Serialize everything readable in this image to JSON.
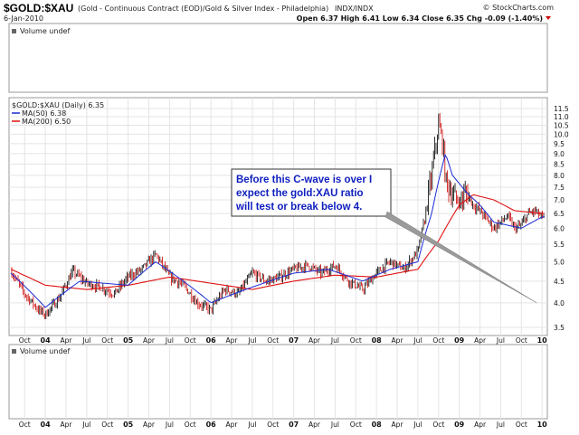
{
  "header": {
    "symbol": "$GOLD:$XAU",
    "description": "(Gold - Continuous Contract (EOD)/Gold & Silver Index - Philadelphia)",
    "exchange": "INDX/INDX",
    "watermark": "© StockCharts.com",
    "date": "6-Jan-2010",
    "quote": "Open 6.37  High 6.41  Low 6.34  Close 6.35  Chg -0.09 (-1.40%)"
  },
  "volume_panel_label": "Volume undef",
  "price_panel": {
    "legend_title": "$GOLD:$XAU (Daily) 6.35",
    "ma50_label": "MA(50) 6.38",
    "ma200_label": "MA(200) 6.50"
  },
  "lower_panel_label": "Volume undef",
  "callout": {
    "lines": [
      "Before this C-wave is over I",
      "expect the gold:XAU ratio",
      "will test or break below 4."
    ]
  },
  "colors": {
    "price_bars": "#000000",
    "down_bars": "#cc0000",
    "ma50": "#1a2bd6",
    "ma200": "#e01010",
    "grid": "#e4e4e4",
    "callout_text": "#1020c0",
    "arrow": "#888888"
  },
  "chart_data": {
    "type": "line",
    "title": "$GOLD:$XAU (Daily)",
    "ylim": [
      3.5,
      11.5
    ],
    "y_scale": "log",
    "yticks": [
      3.5,
      4.0,
      4.5,
      5.0,
      5.5,
      6.0,
      6.5,
      7.0,
      7.5,
      8.0,
      8.5,
      9.0,
      9.5,
      10.0,
      10.5,
      11.0,
      11.5
    ],
    "x_tick_labels": [
      "Oct",
      "04",
      "Apr",
      "Jul",
      "Oct",
      "05",
      "Apr",
      "Jul",
      "Oct",
      "06",
      "Apr",
      "Jul",
      "Oct",
      "07",
      "Apr",
      "Jul",
      "Oct",
      "08",
      "Apr",
      "Jul",
      "Oct",
      "09",
      "Apr",
      "Jul",
      "Oct",
      "10"
    ],
    "x_tick_bold": [
      "04",
      "05",
      "06",
      "07",
      "08",
      "09",
      "10"
    ],
    "grid": true,
    "series": [
      {
        "name": "$GOLD:$XAU",
        "x": [
          "2003-08",
          "2003-10",
          "2003-12",
          "2004-01",
          "2004-03",
          "2004-05",
          "2004-07",
          "2004-09",
          "2004-11",
          "2005-01",
          "2005-03",
          "2005-05",
          "2005-07",
          "2005-09",
          "2005-11",
          "2006-01",
          "2006-03",
          "2006-05",
          "2006-07",
          "2006-09",
          "2006-11",
          "2007-01",
          "2007-03",
          "2007-05",
          "2007-07",
          "2007-09",
          "2007-11",
          "2008-01",
          "2008-03",
          "2008-05",
          "2008-07",
          "2008-08",
          "2008-09",
          "2008-10",
          "2008-10-20",
          "2008-11",
          "2008-12",
          "2009-01",
          "2009-02",
          "2009-03",
          "2009-04",
          "2009-05",
          "2009-06",
          "2009-07",
          "2009-08",
          "2009-09",
          "2009-10",
          "2009-11",
          "2009-12",
          "2010-01"
        ],
        "values": [
          4.75,
          4.2,
          3.85,
          3.75,
          4.1,
          4.75,
          4.45,
          4.35,
          4.2,
          4.6,
          4.8,
          5.2,
          4.6,
          4.4,
          4.0,
          3.85,
          4.3,
          4.2,
          4.7,
          4.5,
          4.6,
          4.8,
          4.9,
          4.7,
          4.9,
          4.5,
          4.3,
          4.7,
          5.0,
          4.8,
          5.3,
          6.3,
          8.0,
          10.5,
          9.5,
          7.8,
          7.2,
          6.9,
          7.3,
          6.8,
          6.6,
          6.3,
          6.0,
          6.2,
          6.4,
          6.0,
          6.1,
          6.5,
          6.6,
          6.35
        ]
      },
      {
        "name": "MA(50)",
        "x": [
          "2003-08",
          "2004-01",
          "2004-06",
          "2005-01",
          "2005-05",
          "2005-09",
          "2006-01",
          "2006-06",
          "2007-01",
          "2007-06",
          "2007-11",
          "2008-03",
          "2008-07",
          "2008-09",
          "2008-11",
          "2008-12",
          "2009-02",
          "2009-04",
          "2009-06",
          "2009-08",
          "2009-10",
          "2010-01"
        ],
        "values": [
          4.7,
          3.9,
          4.5,
          4.4,
          5.0,
          4.5,
          4.0,
          4.3,
          4.7,
          4.8,
          4.5,
          4.8,
          5.0,
          6.5,
          9.0,
          8.0,
          7.3,
          6.8,
          6.2,
          6.1,
          6.0,
          6.38
        ]
      },
      {
        "name": "MA(200)",
        "x": [
          "2003-08",
          "2004-01",
          "2004-07",
          "2005-01",
          "2005-07",
          "2006-01",
          "2006-07",
          "2007-01",
          "2007-07",
          "2008-01",
          "2008-07",
          "2008-10",
          "2009-01",
          "2009-03",
          "2009-06",
          "2009-09",
          "2010-01"
        ],
        "values": [
          4.8,
          4.4,
          4.3,
          4.4,
          4.6,
          4.45,
          4.3,
          4.5,
          4.65,
          4.6,
          4.8,
          5.6,
          6.8,
          7.2,
          7.0,
          6.6,
          6.5
        ]
      }
    ],
    "annotation": {
      "arrow_from": "2008-06",
      "arrow_to_x": "2010-01",
      "arrow_to_y": 4.0
    }
  }
}
